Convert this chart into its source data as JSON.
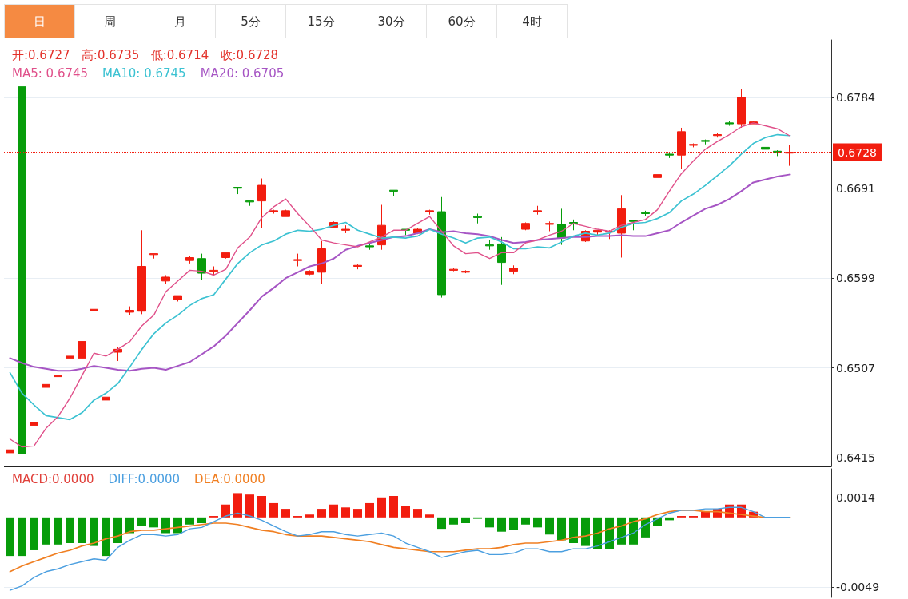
{
  "chart_data": [
    {
      "type": "other",
      "annotations": [
        "日",
        "周",
        "月",
        "5分",
        "15分",
        "30分",
        "60分",
        "4时"
      ]
    },
    {
      "type": "candlestick",
      "tick_labels": "y",
      "grid": "y",
      "marker": "none",
      "line_style": "solid",
      "annotations": [
        "开:0.6727",
        "高:0.6735",
        "低:0.6714",
        "收:0.6728"
      ],
      "categories": [
        null,
        null,
        null,
        null,
        null,
        null,
        null,
        null,
        null,
        null,
        null,
        null,
        null,
        null,
        null,
        null,
        null,
        null,
        null,
        null,
        null,
        null,
        null,
        null,
        null,
        null,
        null,
        null,
        null,
        null,
        null,
        null,
        null,
        null,
        null,
        null,
        null,
        null,
        null,
        null,
        null,
        null,
        null,
        null,
        null,
        null,
        null,
        null,
        null,
        null,
        null,
        null,
        null,
        null,
        null,
        null,
        null,
        null,
        null,
        null,
        null,
        null,
        null,
        null,
        null,
        null,
        null,
        null,
        null
      ],
      "ylim": [
        0.6406,
        0.6843
      ],
      "yticks": [
        0.6415,
        0.6507,
        0.6599,
        0.6691,
        0.6784
      ],
      "ref_lines": [
        {
          "axis": "y",
          "value": 0.6728,
          "label": "0.6728",
          "color": "#f21d0f",
          "line_style": "dotted"
        }
      ],
      "series": [
        {
          "type": "candlestick",
          "ohlc": [
            [
              0.642,
              0.6424,
              0.6419,
              0.6423
            ],
            [
              0.6795,
              0.6795,
              0.6419,
              0.6419
            ],
            [
              0.6448,
              0.6452,
              0.6446,
              0.6451
            ],
            [
              0.6487,
              0.6491,
              0.6486,
              0.649
            ],
            [
              0.6498,
              0.6499,
              0.6494,
              0.6499
            ],
            [
              0.6517,
              0.652,
              0.6515,
              0.6519
            ],
            [
              0.6517,
              0.6555,
              0.6516,
              0.6534
            ],
            [
              0.6566,
              0.6567,
              0.6561,
              0.6567
            ],
            [
              0.6474,
              0.6478,
              0.6471,
              0.6477
            ],
            [
              0.6523,
              0.6528,
              0.6514,
              0.6526
            ],
            [
              0.6564,
              0.657,
              0.6561,
              0.6566
            ],
            [
              0.6565,
              0.6648,
              0.6562,
              0.6611
            ],
            [
              0.6623,
              0.6624,
              0.6619,
              0.6624
            ],
            [
              0.6596,
              0.6602,
              0.6593,
              0.66
            ],
            [
              0.6577,
              0.6581,
              0.6575,
              0.6581
            ],
            [
              0.6617,
              0.6622,
              0.6614,
              0.662
            ],
            [
              0.6619,
              0.6624,
              0.6597,
              0.6604
            ],
            [
              0.6606,
              0.6611,
              0.6602,
              0.6607
            ],
            [
              0.662,
              0.6625,
              0.6619,
              0.6625
            ],
            [
              0.6692,
              0.6692,
              0.6685,
              0.6691
            ],
            [
              0.6678,
              0.6678,
              0.6673,
              0.6677
            ],
            [
              0.6678,
              0.6701,
              0.665,
              0.6694
            ],
            [
              0.6667,
              0.6669,
              0.6665,
              0.6668
            ],
            [
              0.6662,
              0.6669,
              0.6662,
              0.6668
            ],
            [
              0.6617,
              0.6624,
              0.6611,
              0.6618
            ],
            [
              0.6603,
              0.6607,
              0.6602,
              0.6606
            ],
            [
              0.6605,
              0.6637,
              0.6593,
              0.6629
            ],
            [
              0.6651,
              0.6657,
              0.6651,
              0.6656
            ],
            [
              0.6648,
              0.6653,
              0.6645,
              0.6649
            ],
            [
              0.6611,
              0.6613,
              0.6608,
              0.6612
            ],
            [
              0.6632,
              0.6635,
              0.6628,
              0.6631
            ],
            [
              0.6633,
              0.6674,
              0.6628,
              0.6653
            ],
            [
              0.6689,
              0.6689,
              0.6683,
              0.6688
            ],
            [
              0.6649,
              0.6649,
              0.6643,
              0.6648
            ],
            [
              0.6645,
              0.665,
              0.6644,
              0.6649
            ],
            [
              0.6667,
              0.6669,
              0.6664,
              0.6668
            ],
            [
              0.6667,
              0.6682,
              0.6579,
              0.6582
            ],
            [
              0.6607,
              0.6609,
              0.6606,
              0.6608
            ],
            [
              0.6605,
              0.6607,
              0.6604,
              0.6606
            ],
            [
              0.6662,
              0.6665,
              0.6655,
              0.6661
            ],
            [
              0.6633,
              0.6638,
              0.6628,
              0.6632
            ],
            [
              0.6634,
              0.6641,
              0.6592,
              0.6615
            ],
            [
              0.6606,
              0.6612,
              0.6603,
              0.6609
            ],
            [
              0.6649,
              0.6656,
              0.6648,
              0.6655
            ],
            [
              0.6667,
              0.6673,
              0.6664,
              0.6668
            ],
            [
              0.6654,
              0.6657,
              0.6647,
              0.6655
            ],
            [
              0.6654,
              0.667,
              0.6633,
              0.664
            ],
            [
              0.6656,
              0.6659,
              0.6648,
              0.6655
            ],
            [
              0.6637,
              0.6648,
              0.6636,
              0.6647
            ],
            [
              0.6646,
              0.6648,
              0.6642,
              0.6648
            ],
            [
              0.6646,
              0.6648,
              0.6639,
              0.6647
            ],
            [
              0.6645,
              0.6684,
              0.662,
              0.667
            ],
            [
              0.6658,
              0.6658,
              0.6648,
              0.6657
            ],
            [
              0.6666,
              0.6668,
              0.6663,
              0.6665
            ],
            [
              0.6702,
              0.6705,
              0.6702,
              0.6705
            ],
            [
              0.6726,
              0.6728,
              0.6722,
              0.6725
            ],
            [
              0.6725,
              0.6753,
              0.6711,
              0.6749
            ],
            [
              0.6735,
              0.6737,
              0.6733,
              0.6736
            ],
            [
              0.674,
              0.6741,
              0.6736,
              0.6739
            ],
            [
              0.6745,
              0.6748,
              0.6743,
              0.6746
            ],
            [
              0.6758,
              0.676,
              0.6755,
              0.6757
            ],
            [
              0.6757,
              0.6793,
              0.6753,
              0.6784
            ],
            [
              0.6757,
              0.676,
              0.6757,
              0.6759
            ],
            [
              0.6733,
              0.6733,
              0.6731,
              0.6731
            ],
            [
              0.6729,
              0.673,
              0.6724,
              0.6728
            ],
            [
              0.6727,
              0.6735,
              0.6714,
              0.6728
            ],
            null,
            null,
            null
          ],
          "colors": [
            "#f21d0f",
            "#079c0a",
            "#f21d0f",
            "#f21d0f",
            "#f21d0f",
            "#f21d0f",
            "#f21d0f",
            "#f21d0f",
            "#f21d0f",
            "#f21d0f",
            "#f21d0f",
            "#f21d0f",
            "#f21d0f",
            "#f21d0f",
            "#f21d0f",
            "#f21d0f",
            "#079c0a",
            "#f21d0f",
            "#f21d0f",
            "#079c0a",
            "#079c0a",
            "#f21d0f",
            "#f21d0f",
            "#f21d0f",
            "#f21d0f",
            "#f21d0f",
            "#f21d0f",
            "#f21d0f",
            "#f21d0f",
            "#f21d0f",
            "#079c0a",
            "#f21d0f",
            "#079c0a",
            "#079c0a",
            "#f21d0f",
            "#f21d0f",
            "#079c0a",
            "#f21d0f",
            "#f21d0f",
            "#079c0a",
            "#079c0a",
            "#079c0a",
            "#f21d0f",
            "#f21d0f",
            "#f21d0f",
            "#f21d0f",
            "#079c0a",
            "#079c0a",
            "#f21d0f",
            "#f21d0f",
            "#f21d0f",
            "#f21d0f",
            "#079c0a",
            "#079c0a",
            "#f21d0f",
            "#079c0a",
            "#f21d0f",
            "#f21d0f",
            "#079c0a",
            "#f21d0f",
            "#079c0a",
            "#f21d0f",
            "#f21d0f",
            "#079c0a",
            "#079c0a",
            "#f21d0f",
            null,
            null,
            null
          ]
        },
        {
          "type": "line",
          "name": "MA5: 0.6745",
          "color": "#e0508a",
          "values": [
            0.6434,
            0.6426,
            0.6427,
            0.6445,
            0.6457,
            0.6476,
            0.6499,
            0.6522,
            0.6519,
            0.6526,
            0.6534,
            0.655,
            0.6561,
            0.6585,
            0.6596,
            0.6607,
            0.6606,
            0.6602,
            0.6608,
            0.663,
            0.6641,
            0.6661,
            0.6672,
            0.668,
            0.6665,
            0.6652,
            0.6638,
            0.6635,
            0.6633,
            0.6631,
            0.6636,
            0.6641,
            0.6648,
            0.6648,
            0.6655,
            0.6662,
            0.6647,
            0.6632,
            0.6624,
            0.6625,
            0.6619,
            0.6625,
            0.6625,
            0.6635,
            0.6638,
            0.6643,
            0.6647,
            0.6655,
            0.6652,
            0.6649,
            0.6647,
            0.6653,
            0.6656,
            0.6659,
            0.6669,
            0.6688,
            0.6706,
            0.6719,
            0.6731,
            0.6739,
            0.6746,
            0.6754,
            0.6758,
            0.6755,
            0.6752,
            0.6745,
            null,
            null,
            null
          ]
        },
        {
          "type": "line",
          "name": "MA10: 0.6745",
          "color": "#3cc2d2",
          "values": [
            0.6502,
            0.6481,
            0.6469,
            0.6458,
            0.6456,
            0.6454,
            0.6461,
            0.6474,
            0.6481,
            0.6491,
            0.6508,
            0.6526,
            0.6542,
            0.6553,
            0.6561,
            0.6571,
            0.6578,
            0.6582,
            0.6598,
            0.6614,
            0.6625,
            0.6633,
            0.6637,
            0.6644,
            0.6648,
            0.6647,
            0.6649,
            0.6653,
            0.6656,
            0.6648,
            0.6644,
            0.664,
            0.6641,
            0.664,
            0.6642,
            0.6649,
            0.6644,
            0.664,
            0.6635,
            0.664,
            0.6641,
            0.6636,
            0.6629,
            0.6629,
            0.6631,
            0.663,
            0.6636,
            0.6642,
            0.6645,
            0.6643,
            0.6645,
            0.6651,
            0.6655,
            0.6656,
            0.666,
            0.6666,
            0.6678,
            0.6685,
            0.6694,
            0.6704,
            0.6714,
            0.6726,
            0.6737,
            0.6743,
            0.6746,
            0.6745,
            null,
            null,
            null
          ]
        },
        {
          "type": "line",
          "name": "MA20: 0.6705",
          "color": "#a655c4",
          "values": [
            0.6517,
            0.6512,
            0.6508,
            0.6506,
            0.6504,
            0.6504,
            0.6506,
            0.6509,
            0.6507,
            0.6505,
            0.6504,
            0.6506,
            0.6507,
            0.6505,
            0.6509,
            0.6513,
            0.6521,
            0.6529,
            0.654,
            0.6553,
            0.6566,
            0.658,
            0.6589,
            0.6599,
            0.6605,
            0.6611,
            0.6614,
            0.6619,
            0.6628,
            0.6632,
            0.6635,
            0.6638,
            0.6641,
            0.6642,
            0.6645,
            0.6649,
            0.6646,
            0.6647,
            0.6645,
            0.6644,
            0.6642,
            0.6638,
            0.6635,
            0.6636,
            0.6638,
            0.6639,
            0.664,
            0.6641,
            0.6641,
            0.6642,
            0.6642,
            0.6643,
            0.6642,
            0.6642,
            0.6645,
            0.6648,
            0.6656,
            0.6663,
            0.667,
            0.6674,
            0.668,
            0.6688,
            0.6697,
            0.67,
            0.6703,
            0.6705,
            null,
            null,
            null
          ]
        }
      ]
    },
    {
      "type": "bar",
      "tick_labels": "y",
      "grid": "y",
      "marker": "none",
      "line_style": "solid",
      "categories": [
        null,
        null,
        null,
        null,
        null,
        null,
        null,
        null,
        null,
        null,
        null,
        null,
        null,
        null,
        null,
        null,
        null,
        null,
        null,
        null,
        null,
        null,
        null,
        null,
        null,
        null,
        null,
        null,
        null,
        null,
        null,
        null,
        null,
        null,
        null,
        null,
        null,
        null,
        null,
        null,
        null,
        null,
        null,
        null,
        null,
        null,
        null,
        null,
        null,
        null,
        null,
        null,
        null,
        null,
        null,
        null,
        null,
        null,
        null,
        null,
        null,
        null,
        null,
        null,
        null,
        null,
        null,
        null,
        null
      ],
      "ylim": [
        -0.0056,
        0.0034
      ],
      "yticks": [
        -0.0049,
        0.0014
      ],
      "ref_lines": [
        {
          "axis": "y",
          "value": 0,
          "color": "#9cd0ee",
          "line_style": "dashed"
        }
      ],
      "series": [
        {
          "type": "bar",
          "name": "MACD:0.0000",
          "color": "#e0403a",
          "values": [
            -0.0027,
            -0.0027,
            -0.0023,
            -0.0019,
            -0.0019,
            -0.0018,
            -0.0018,
            -0.002,
            -0.0027,
            -0.0018,
            -0.0011,
            -0.0006,
            -0.0007,
            -0.0011,
            -0.0011,
            -0.0005,
            -0.0004,
            0.0001,
            0.0009,
            0.0017,
            0.0016,
            0.0015,
            0.001,
            0.0006,
            0.0001,
            0.0002,
            0.0006,
            0.0009,
            0.0007,
            0.0006,
            0.001,
            0.0014,
            0.0015,
            0.0008,
            0.0006,
            0.0002,
            -0.0008,
            -0.0005,
            -0.0004,
            -0.0001,
            -0.0007,
            -0.001,
            -0.0009,
            -0.0005,
            -0.0007,
            -0.0012,
            -0.0016,
            -0.0018,
            -0.002,
            -0.0022,
            -0.0022,
            -0.0019,
            -0.0019,
            -0.0014,
            -0.0006,
            -0.0002,
            0.0001,
            0.0001,
            0.0004,
            0.0006,
            0.0009,
            0.0009,
            0.0004,
            0,
            0,
            0,
            null,
            null,
            null
          ],
          "colors": [
            "#079c0a",
            "#079c0a",
            "#079c0a",
            "#079c0a",
            "#079c0a",
            "#079c0a",
            "#079c0a",
            "#079c0a",
            "#079c0a",
            "#079c0a",
            "#079c0a",
            "#079c0a",
            "#079c0a",
            "#079c0a",
            "#079c0a",
            "#079c0a",
            "#079c0a",
            "#f21d0f",
            "#f21d0f",
            "#f21d0f",
            "#f21d0f",
            "#f21d0f",
            "#f21d0f",
            "#f21d0f",
            "#f21d0f",
            "#f21d0f",
            "#f21d0f",
            "#f21d0f",
            "#f21d0f",
            "#f21d0f",
            "#f21d0f",
            "#f21d0f",
            "#f21d0f",
            "#f21d0f",
            "#f21d0f",
            "#f21d0f",
            "#079c0a",
            "#079c0a",
            "#079c0a",
            "#079c0a",
            "#079c0a",
            "#079c0a",
            "#079c0a",
            "#079c0a",
            "#079c0a",
            "#079c0a",
            "#079c0a",
            "#079c0a",
            "#079c0a",
            "#079c0a",
            "#079c0a",
            "#079c0a",
            "#079c0a",
            "#079c0a",
            "#079c0a",
            "#079c0a",
            "#f21d0f",
            "#f21d0f",
            "#f21d0f",
            "#f21d0f",
            "#f21d0f",
            "#f21d0f",
            "#f21d0f",
            "#079c0a",
            "#079c0a",
            "#079c0a",
            null,
            null,
            null
          ]
        },
        {
          "type": "line",
          "name": "DIFF:0.0000",
          "color": "#4b9fe0",
          "values": [
            -0.0051,
            -0.0048,
            -0.0042,
            -0.0038,
            -0.0036,
            -0.0033,
            -0.0031,
            -0.0029,
            -0.003,
            -0.0021,
            -0.0016,
            -0.0012,
            -0.0012,
            -0.0013,
            -0.0012,
            -0.0008,
            -0.0007,
            -0.0003,
            0.0001,
            0.0003,
            0.0001,
            -0.0002,
            -0.0006,
            -0.001,
            -0.0013,
            -0.0012,
            -0.001,
            -0.001,
            -0.0012,
            -0.0013,
            -0.0012,
            -0.0011,
            -0.0013,
            -0.0018,
            -0.0021,
            -0.0024,
            -0.0028,
            -0.0026,
            -0.0024,
            -0.0023,
            -0.0026,
            -0.0026,
            -0.0025,
            -0.0022,
            -0.0022,
            -0.0024,
            -0.0024,
            -0.0022,
            -0.0022,
            -0.002,
            -0.0017,
            -0.0014,
            -0.0011,
            -0.0005,
            -0.0001,
            0.0003,
            0.0005,
            0.0005,
            0.0006,
            0.0006,
            0.0007,
            0.0007,
            0.0004,
            0,
            0,
            0,
            null,
            null,
            null
          ]
        },
        {
          "type": "line",
          "name": "DEA:0.0000",
          "color": "#f07f22",
          "values": [
            -0.0038,
            -0.0034,
            -0.0031,
            -0.0028,
            -0.0025,
            -0.0023,
            -0.002,
            -0.0018,
            -0.0015,
            -0.0013,
            -0.001,
            -0.0009,
            -0.0009,
            -0.0008,
            -0.0007,
            -0.0006,
            -0.0005,
            -0.0004,
            -0.0004,
            -0.0005,
            -0.0007,
            -0.0009,
            -0.001,
            -0.0012,
            -0.0013,
            -0.0013,
            -0.0013,
            -0.0014,
            -0.0015,
            -0.0016,
            -0.0017,
            -0.0019,
            -0.0021,
            -0.0022,
            -0.0023,
            -0.0024,
            -0.0024,
            -0.0024,
            -0.0023,
            -0.0022,
            -0.0022,
            -0.0021,
            -0.0019,
            -0.0018,
            -0.0018,
            -0.0017,
            -0.0016,
            -0.0014,
            -0.0013,
            -0.0011,
            -0.0008,
            -0.0006,
            -0.0003,
            -0.0001,
            0.0002,
            0.0004,
            0.0005,
            0.0005,
            0.0004,
            0.0004,
            0.0003,
            0.0002,
            0.0001,
            0,
            0,
            0,
            null,
            null,
            null
          ]
        }
      ]
    }
  ]
}
